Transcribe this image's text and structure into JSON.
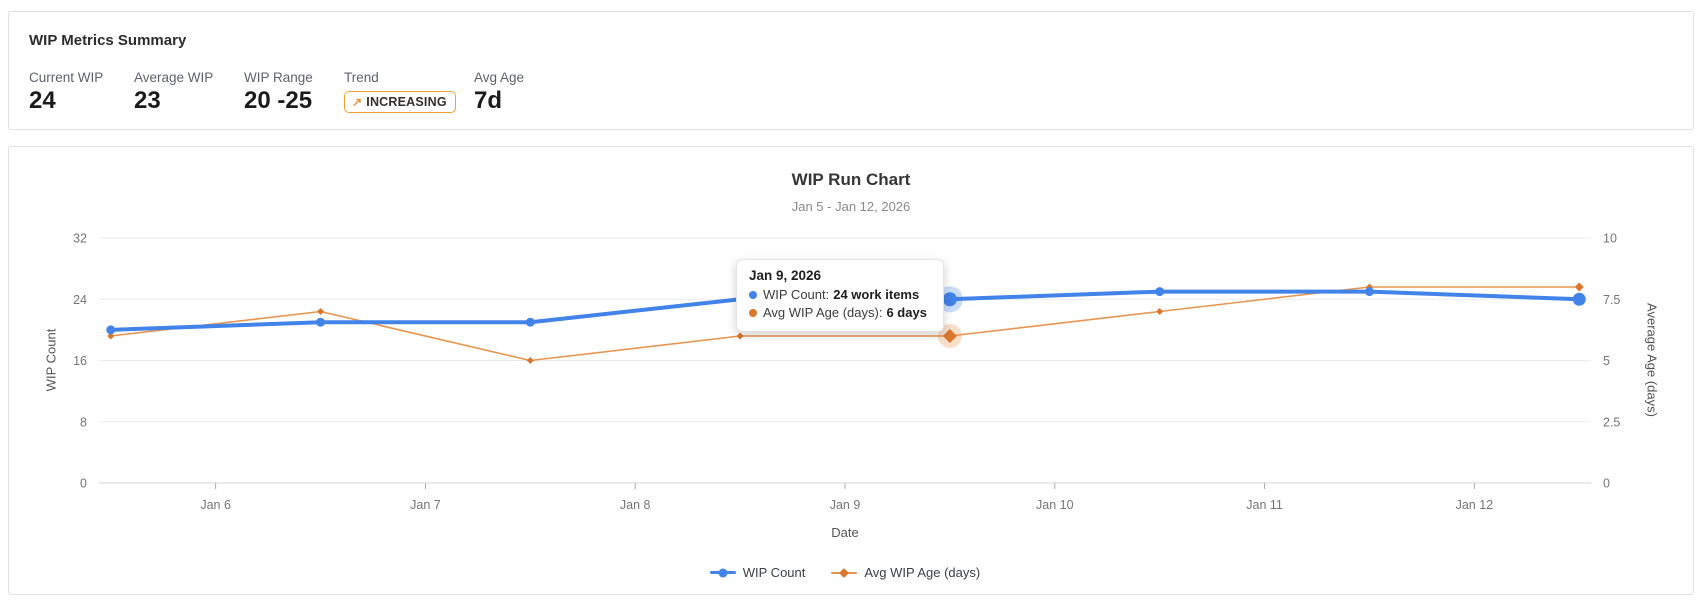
{
  "summary": {
    "title": "WIP Metrics Summary",
    "metrics": [
      {
        "label": "Current WIP",
        "value": "24"
      },
      {
        "label": "Average WIP",
        "value": "23"
      },
      {
        "label": "WIP Range",
        "value": "20 -25"
      },
      {
        "label": "Trend",
        "value": "INCREASING",
        "arrow": "↗"
      },
      {
        "label": "Avg Age",
        "value": "7d"
      }
    ]
  },
  "chart": {
    "title": "WIP Run Chart",
    "subtitle": "Jan 5 - Jan 12, 2026",
    "xlabel": "Date",
    "ylabel_left": "WIP Count",
    "ylabel_right": "Average Age (days)",
    "legend": [
      {
        "label": "WIP Count",
        "color": "#4183e8"
      },
      {
        "label": "Avg WIP Age (days)",
        "color": "#e8954f"
      }
    ]
  },
  "tooltip": {
    "date": "Jan 9, 2026",
    "rows": [
      {
        "label": "WIP Count:",
        "value": "24 work items",
        "color": "#4183e8"
      },
      {
        "label": "Avg WIP Age (days):",
        "value": "6 days",
        "color": "#d9772e"
      }
    ]
  },
  "chart_data": {
    "type": "line",
    "x": [
      "Jan 5",
      "Jan 6",
      "Jan 7",
      "Jan 8",
      "Jan 9",
      "Jan 10",
      "Jan 11",
      "Jan 12"
    ],
    "x_tick_labels": [
      "Jan 6",
      "Jan 7",
      "Jan 8",
      "Jan 9",
      "Jan 10",
      "Jan 11",
      "Jan 12"
    ],
    "series": [
      {
        "name": "WIP Count",
        "axis": "left",
        "color": "#4183e8",
        "marker": "circle",
        "values": [
          20,
          21,
          21,
          24,
          24,
          25,
          25,
          24
        ]
      },
      {
        "name": "Avg WIP Age (days)",
        "axis": "right",
        "color": "#e8954f",
        "marker_color": "#d9772e",
        "marker": "diamond",
        "values": [
          6,
          7,
          5,
          6,
          6,
          7,
          8,
          8
        ]
      }
    ],
    "ylim_left": [
      0,
      32
    ],
    "yticks_left": [
      0,
      8,
      16,
      24,
      32
    ],
    "ylim_right": [
      0,
      10
    ],
    "yticks_right": [
      0,
      2.5,
      5,
      7.5,
      10
    ],
    "highlight_index": 4,
    "grid": true,
    "legend_position": "bottom"
  },
  "colors": {
    "blue": "#4183e8",
    "orange_line": "#e8954f",
    "orange_marker": "#d9772e",
    "badge_border": "#f0a136",
    "gridline": "#ebebeb",
    "axis_line": "#d4d4d4"
  }
}
